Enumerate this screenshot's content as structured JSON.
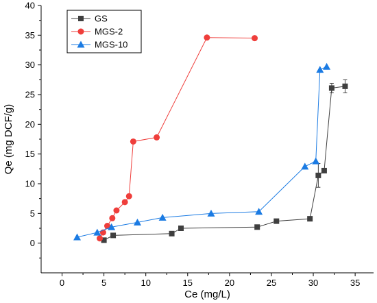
{
  "chart_data": {
    "type": "line",
    "xlabel": "Ce (mg/L)",
    "ylabel": "Qe (mg DCF/g)",
    "xlim": [
      -2.5,
      37.2
    ],
    "ylim": [
      -5,
      40
    ],
    "xticks": [
      0,
      5,
      10,
      15,
      20,
      25,
      30,
      35
    ],
    "yticks": [
      0,
      5,
      10,
      15,
      20,
      25,
      30,
      35,
      40
    ],
    "grid": false,
    "legend_position": "top-left",
    "series": [
      {
        "name": "GS",
        "color": "#3f3f3f",
        "marker": "square",
        "x": [
          5.0,
          6.1,
          13.1,
          14.2,
          23.3,
          25.6,
          29.6,
          30.6,
          31.3,
          32.2,
          33.8
        ],
        "y": [
          0.5,
          1.3,
          1.6,
          2.5,
          2.7,
          3.7,
          4.1,
          11.4,
          12.2,
          26.1,
          26.4
        ],
        "yerr": [
          0,
          0,
          0,
          0,
          0,
          0,
          0,
          2.0,
          0,
          0.8,
          1.1
        ]
      },
      {
        "name": "MGS-2",
        "color": "#ef3e3b",
        "marker": "circle",
        "x": [
          4.5,
          4.9,
          5.4,
          6.0,
          6.5,
          7.5,
          8.0,
          8.5,
          11.3,
          17.3,
          23.0
        ],
        "y": [
          0.8,
          1.8,
          2.9,
          4.2,
          5.5,
          6.9,
          7.9,
          17.1,
          17.8,
          34.6,
          34.5
        ]
      },
      {
        "name": "MGS-10",
        "color": "#1b7be3",
        "marker": "triangle",
        "x": [
          1.8,
          4.2,
          5.9,
          9.0,
          12.0,
          17.8,
          23.5,
          29.0,
          30.3,
          30.8,
          31.6
        ],
        "y": [
          1.0,
          1.8,
          2.7,
          3.5,
          4.3,
          5.0,
          5.3,
          12.9,
          13.8,
          29.2,
          29.7
        ]
      }
    ]
  }
}
